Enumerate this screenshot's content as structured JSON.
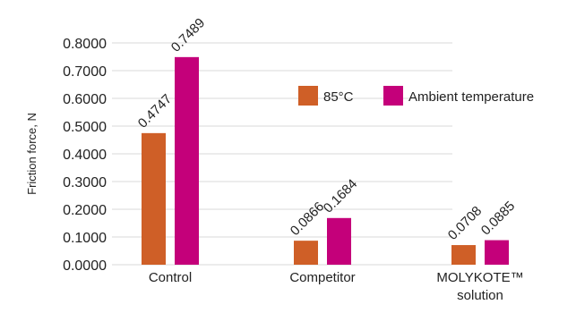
{
  "chart_data": {
    "type": "bar",
    "title": "",
    "xlabel": "",
    "ylabel": "Friction force, N",
    "ylim": [
      0,
      0.8
    ],
    "y_ticks": [
      "0.0000",
      "0.1000",
      "0.2000",
      "0.3000",
      "0.4000",
      "0.5000",
      "0.6000",
      "0.7000",
      "0.8000"
    ],
    "categories": [
      [
        "Control"
      ],
      [
        "Competitor"
      ],
      [
        "MOLYKOTE™",
        "solution"
      ]
    ],
    "series": [
      {
        "name": "85°C",
        "color": "#CF5F27",
        "values": [
          0.4747,
          0.0866,
          0.0708
        ],
        "labels": [
          "0.4747",
          "0.0866",
          "0.0708"
        ]
      },
      {
        "name": "Ambient temperature",
        "color": "#C4007A",
        "values": [
          0.7489,
          0.1684,
          0.0885
        ],
        "labels": [
          "0.7489",
          "0.1684",
          "0.0885"
        ]
      }
    ],
    "grid": true,
    "legend_position": "center-right"
  }
}
